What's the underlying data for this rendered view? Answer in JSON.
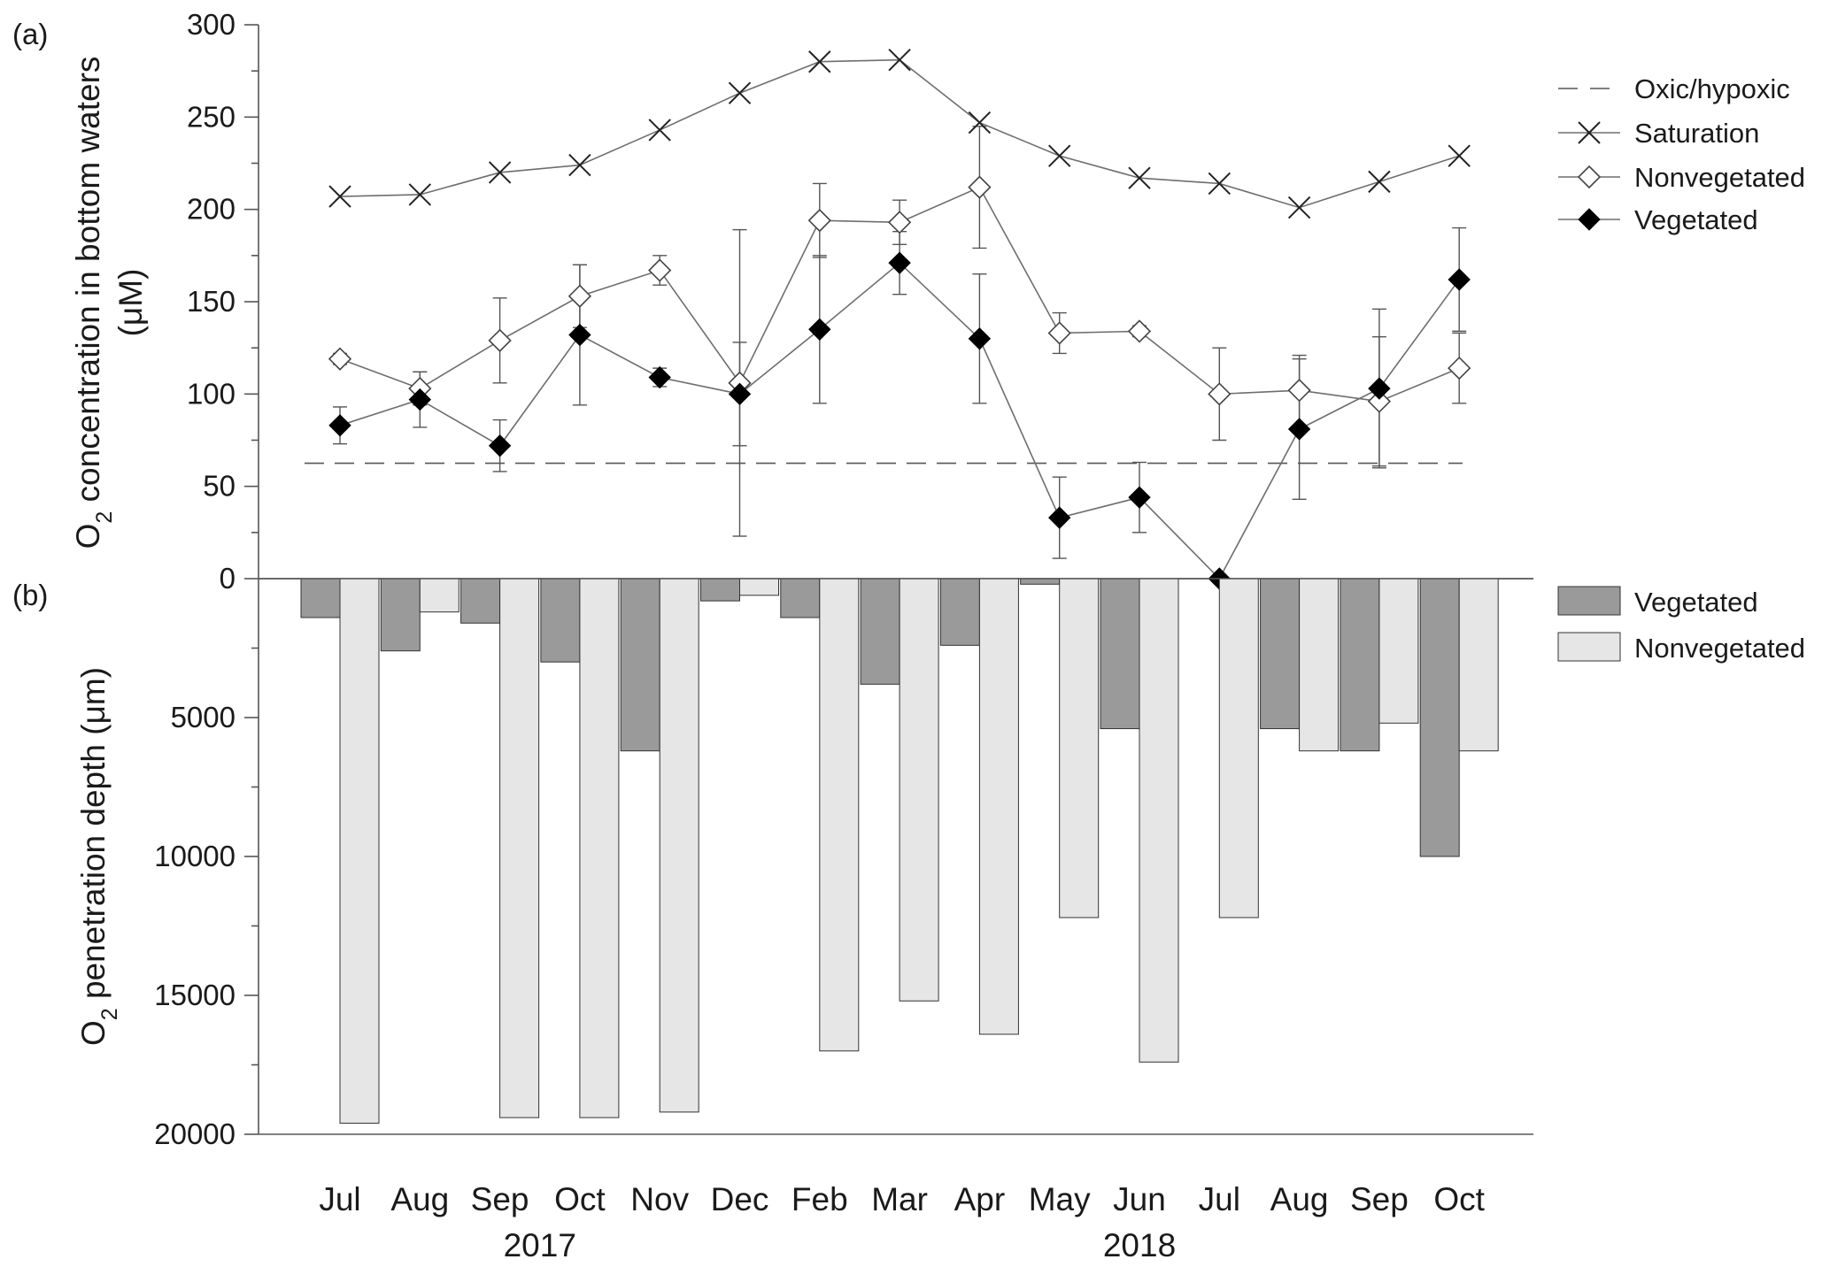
{
  "chart_data": [
    {
      "panel_label": "(a)",
      "type": "line",
      "ylabel_parts": [
        "O",
        "2",
        " concentration in bottom waters"
      ],
      "ylabel_line2": "(μM)",
      "ylim": [
        0,
        300
      ],
      "yticks": [
        0,
        50,
        100,
        150,
        200,
        250,
        300
      ],
      "categories": [
        "Jul",
        "Aug",
        "Sep",
        "Oct",
        "Nov",
        "Dec",
        "Feb",
        "Mar",
        "Apr",
        "May",
        "Jun",
        "Jul",
        "Aug",
        "Sep",
        "Oct"
      ],
      "threshold": {
        "name": "Oxic/hypoxic",
        "value": 62.5
      },
      "series": [
        {
          "name": "Saturation",
          "marker": "x",
          "values": [
            207,
            208,
            220,
            224,
            243,
            263,
            280,
            281,
            247,
            229,
            217,
            214,
            201,
            215,
            229
          ]
        },
        {
          "name": "Nonvegetated",
          "marker": "open-diamond",
          "values": [
            119,
            103,
            129,
            153,
            167,
            106,
            194,
            193,
            212,
            133,
            134,
            100,
            102,
            96,
            114
          ],
          "err": [
            3,
            9,
            23,
            17,
            8,
            83,
            20,
            12,
            33,
            11,
            3,
            25,
            19,
            35,
            19
          ]
        },
        {
          "name": "Vegetated",
          "marker": "filled-diamond",
          "values": [
            83,
            97,
            72,
            132,
            109,
            100,
            135,
            171,
            130,
            33,
            44,
            0,
            81,
            103,
            162
          ],
          "err": [
            10,
            15,
            14,
            38,
            5,
            28,
            40,
            17,
            35,
            22,
            19,
            0,
            38,
            43,
            28
          ]
        }
      ],
      "legend": [
        "Oxic/hypoxic",
        "Saturation",
        "Nonvegetated",
        "Vegetated"
      ],
      "legend_position": "top-right"
    },
    {
      "panel_label": "(b)",
      "type": "bar",
      "ylabel_parts": [
        "O",
        "2",
        " penetration depth (μm)"
      ],
      "ylim": [
        0,
        20000
      ],
      "y_inverted": true,
      "yticks": [
        5000,
        10000,
        15000,
        20000
      ],
      "categories": [
        "Jul",
        "Aug",
        "Sep",
        "Oct",
        "Nov",
        "Dec",
        "Feb",
        "Mar",
        "Apr",
        "May",
        "Jun",
        "Jul",
        "Aug",
        "Sep",
        "Oct"
      ],
      "series": [
        {
          "name": "Vegetated",
          "color": "#9a9a9a",
          "values": [
            1400,
            2600,
            1600,
            3000,
            6200,
            800,
            1400,
            3800,
            2400,
            200,
            5400,
            0,
            5400,
            6200,
            10000
          ]
        },
        {
          "name": "Nonvegetated",
          "color": "#e6e6e6",
          "values": [
            19600,
            1200,
            19400,
            19400,
            19200,
            600,
            17000,
            15200,
            16400,
            12200,
            17400,
            12200,
            6200,
            5200,
            6200
          ]
        }
      ],
      "legend": [
        "Vegetated",
        "Nonvegetated"
      ],
      "legend_position": "right"
    }
  ],
  "years": [
    {
      "label": "2017",
      "first_index": 0,
      "last_index": 5
    },
    {
      "label": "2018",
      "first_index": 6,
      "last_index": 14
    }
  ],
  "colors": {
    "axis": "#555555",
    "line": "#6e6e6e",
    "vegetated_bar": "#9a9a9a",
    "nonvegetated_bar": "#e6e6e6",
    "marker_fill": "#000000"
  }
}
